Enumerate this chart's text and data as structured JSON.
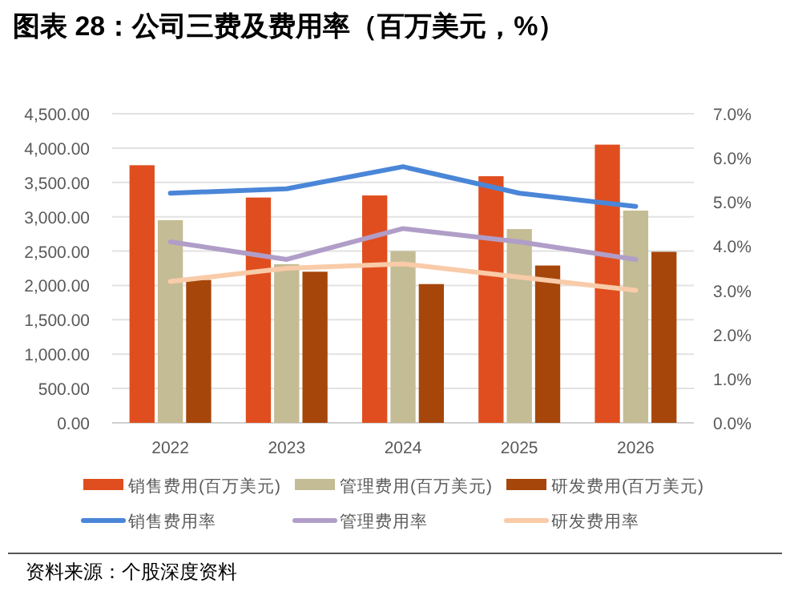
{
  "chart_data": {
    "type": "bar",
    "title": "图表 28：公司三费及费用率（百万美元，%）",
    "categories": [
      "2022",
      "2023",
      "2024",
      "2025",
      "2026"
    ],
    "series": [
      {
        "name": "销售费用(百万美元)",
        "color": "#e04e1f",
        "values": [
          3750,
          3280,
          3310,
          3590,
          4050
        ]
      },
      {
        "name": "管理费用(百万美元)",
        "color": "#c4bc94",
        "values": [
          2950,
          2310,
          2500,
          2820,
          3090
        ]
      },
      {
        "name": "研发费用(百万美元)",
        "color": "#a6460b",
        "values": [
          2080,
          2200,
          2020,
          2290,
          2490
        ]
      },
      {
        "name": "销售费用率",
        "type": "line",
        "axis": "y2",
        "color": "#4a86d8",
        "values": [
          5.2,
          5.3,
          5.8,
          5.2,
          4.9
        ]
      },
      {
        "name": "管理费用率",
        "type": "line",
        "axis": "y2",
        "color": "#b09ec8",
        "values": [
          4.1,
          3.7,
          4.4,
          4.1,
          3.7
        ]
      },
      {
        "name": "研发费用率",
        "type": "line",
        "axis": "y2",
        "color": "#f9cba8",
        "values": [
          3.2,
          3.5,
          3.6,
          3.3,
          3.0
        ]
      }
    ],
    "ylim": [
      0,
      4500
    ],
    "yticks": [
      {
        "value": 0,
        "label": "0.00"
      },
      {
        "value": 500,
        "label": "500.00"
      },
      {
        "value": 1000,
        "label": "1,000.00"
      },
      {
        "value": 1500,
        "label": "1,500.00"
      },
      {
        "value": 2000,
        "label": "2,000.00"
      },
      {
        "value": 2500,
        "label": "2,500.00"
      },
      {
        "value": 3000,
        "label": "3,000.00"
      },
      {
        "value": 3500,
        "label": "3,500.00"
      },
      {
        "value": 4000,
        "label": "4,000.00"
      },
      {
        "value": 4500,
        "label": "4,500.00"
      }
    ],
    "y2lim": [
      0,
      7
    ],
    "y2ticks": [
      {
        "value": 0,
        "label": "0.0%"
      },
      {
        "value": 1,
        "label": "1.0%"
      },
      {
        "value": 2,
        "label": "2.0%"
      },
      {
        "value": 3,
        "label": "3.0%"
      },
      {
        "value": 4,
        "label": "4.0%"
      },
      {
        "value": 5,
        "label": "5.0%"
      },
      {
        "value": 6,
        "label": "6.0%"
      },
      {
        "value": 7,
        "label": "7.0%"
      }
    ],
    "grid": "y",
    "legend": "bottom",
    "marker": "none",
    "annotations": [
      "资料来源：个股深度资料"
    ]
  }
}
